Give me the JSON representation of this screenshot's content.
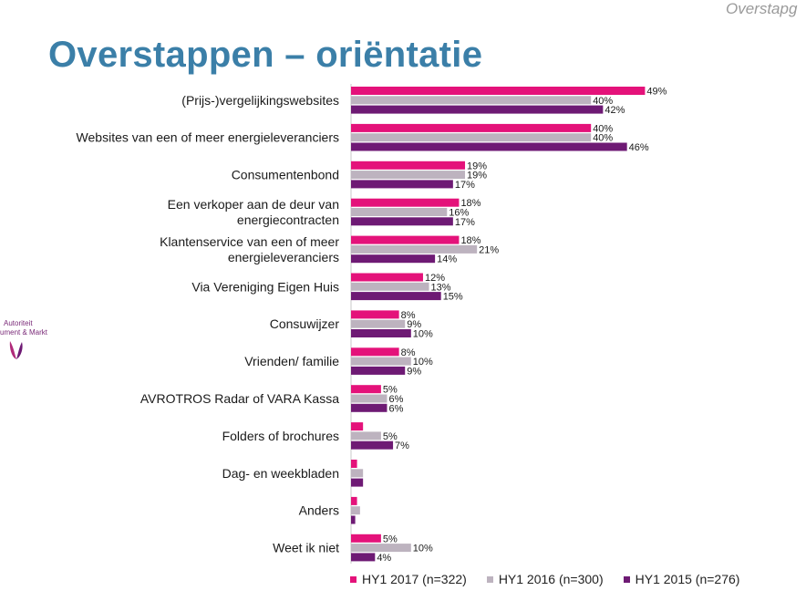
{
  "header": {
    "corner_text": "Overstapg",
    "title": "Overstappen – oriëntatie"
  },
  "logo": {
    "line1": "Autoriteit",
    "line2": "ument & Markt"
  },
  "colors": {
    "hy1_2017": "#e4127a",
    "hy1_2016": "#bdb3bf",
    "hy1_2015": "#6e1a74",
    "title": "#3b7fa8"
  },
  "chart_data": {
    "type": "bar",
    "orientation": "horizontal",
    "categories": [
      "(Prijs-)vergelijkingswebsites",
      "Websites van een of meer energieleveranciers",
      "Consumentenbond",
      "Een verkoper aan de deur van\nenergiecontracten",
      "Klantenservice van een of meer\nenergieleveranciers",
      "Via Vereniging Eigen Huis",
      "Consuwijzer",
      "Vrienden/ familie",
      "AVROTROS Radar of VARA Kassa",
      "Folders of brochures",
      "Dag- en weekbladen",
      "Anders",
      "Weet ik niet"
    ],
    "series": [
      {
        "name": "HY1 2017 (n=322)",
        "color": "#e4127a",
        "values": [
          49,
          40,
          19,
          18,
          18,
          12,
          8,
          8,
          5,
          2,
          1,
          1,
          5
        ],
        "labels": [
          "49%",
          "40%",
          "19%",
          "18%",
          "18%",
          "12%",
          "8%",
          "8%",
          "5%",
          "",
          "",
          "",
          "5%"
        ]
      },
      {
        "name": "HY1 2016 (n=300)",
        "color": "#bdb3bf",
        "values": [
          40,
          40,
          19,
          16,
          21,
          13,
          9,
          10,
          6,
          5,
          2,
          1.5,
          10
        ],
        "labels": [
          "40%",
          "40%",
          "19%",
          "16%",
          "21%",
          "13%",
          "9%",
          "10%",
          "6%",
          "5%",
          "",
          "",
          "10%"
        ]
      },
      {
        "name": "HY1 2015 (n=276)",
        "color": "#6e1a74",
        "values": [
          42,
          46,
          17,
          17,
          14,
          15,
          10,
          9,
          6,
          7,
          2,
          0.7,
          4
        ],
        "labels": [
          "42%",
          "46%",
          "17%",
          "17%",
          "14%",
          "15%",
          "10%",
          "9%",
          "6%",
          "7%",
          "",
          "",
          "4%"
        ]
      }
    ],
    "legend": [
      "HY1 2017 (n=322)",
      "HY1 2016 (n=300)",
      "HY1 2015 (n=276)"
    ],
    "legend_position": "bottom",
    "xlim": [
      0,
      60
    ],
    "grid": false
  }
}
